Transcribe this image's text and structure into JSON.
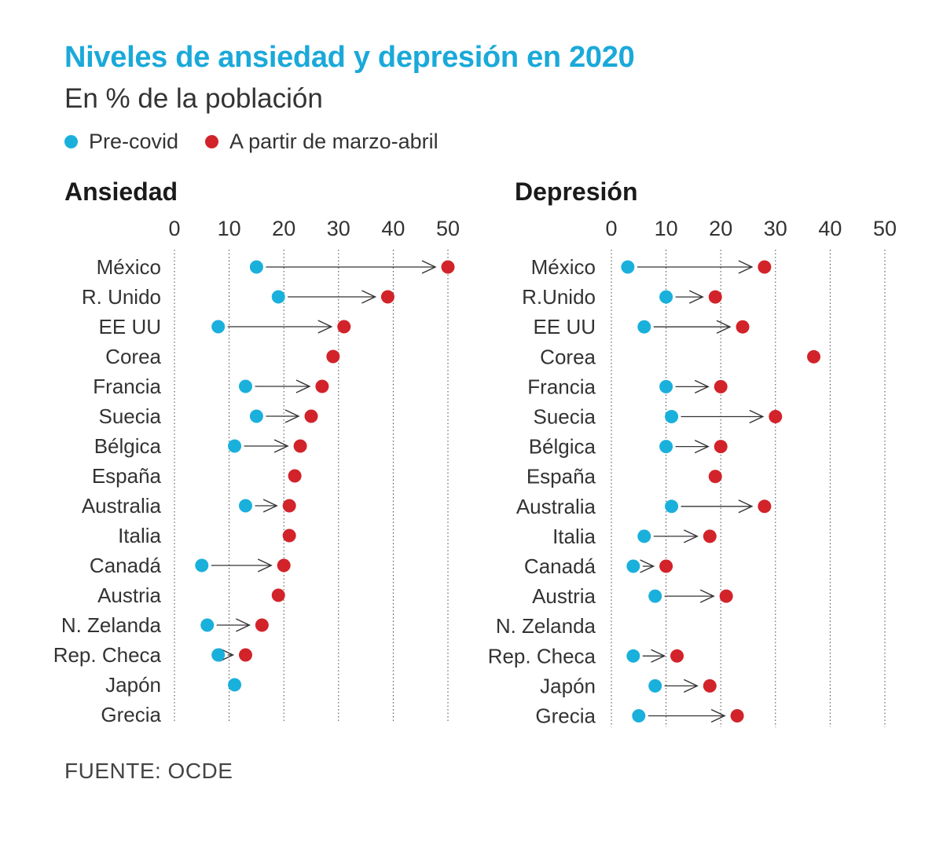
{
  "title": "Niveles de ansiedad y depresión en 2020",
  "subtitle": "En % de la población",
  "legend": [
    {
      "label": "Pre-covid",
      "color": "#1ab0dc"
    },
    {
      "label": "A partir de marzo-abril",
      "color": "#d2232a"
    }
  ],
  "source": "FUENTE: OCDE",
  "colors": {
    "pre": "#1ab0dc",
    "post": "#d2232a"
  },
  "chart_data": [
    {
      "type": "dot-arrow",
      "title": "Ansiedad",
      "xlim": [
        0,
        50
      ],
      "ticks": [
        0,
        10,
        20,
        30,
        40,
        50
      ],
      "series": [
        {
          "name": "Pre-covid"
        },
        {
          "name": "A partir de marzo-abril"
        }
      ],
      "rows": [
        {
          "label": "México",
          "pre": 15,
          "post": 50
        },
        {
          "label": "R. Unido",
          "pre": 19,
          "post": 39
        },
        {
          "label": "EE UU",
          "pre": 8,
          "post": 31
        },
        {
          "label": "Corea",
          "pre": null,
          "post": 29
        },
        {
          "label": "Francia",
          "pre": 13,
          "post": 27
        },
        {
          "label": "Suecia",
          "pre": 15,
          "post": 25
        },
        {
          "label": "Bélgica",
          "pre": 11,
          "post": 23
        },
        {
          "label": "España",
          "pre": null,
          "post": 22
        },
        {
          "label": "Australia",
          "pre": 13,
          "post": 21
        },
        {
          "label": "Italia",
          "pre": null,
          "post": 21
        },
        {
          "label": "Canadá",
          "pre": 5,
          "post": 20
        },
        {
          "label": "Austria",
          "pre": null,
          "post": 19
        },
        {
          "label": "N. Zelanda",
          "pre": 6,
          "post": 16
        },
        {
          "label": "Rep. Checa",
          "pre": 8,
          "post": 13
        },
        {
          "label": "Japón",
          "pre": 11,
          "post": null
        },
        {
          "label": "Grecia",
          "pre": null,
          "post": null
        }
      ]
    },
    {
      "type": "dot-arrow",
      "title": "Depresión",
      "xlim": [
        0,
        50
      ],
      "ticks": [
        0,
        10,
        20,
        30,
        40,
        50
      ],
      "series": [
        {
          "name": "Pre-covid"
        },
        {
          "name": "A partir de marzo-abril"
        }
      ],
      "rows": [
        {
          "label": "México",
          "pre": 3,
          "post": 28
        },
        {
          "label": "R.Unido",
          "pre": 10,
          "post": 19
        },
        {
          "label": "EE UU",
          "pre": 6,
          "post": 24
        },
        {
          "label": "Corea",
          "pre": null,
          "post": 37
        },
        {
          "label": "Francia",
          "pre": 10,
          "post": 20
        },
        {
          "label": "Suecia",
          "pre": 11,
          "post": 30
        },
        {
          "label": "Bélgica",
          "pre": 10,
          "post": 20
        },
        {
          "label": "España",
          "pre": null,
          "post": 19
        },
        {
          "label": "Australia",
          "pre": 11,
          "post": 28
        },
        {
          "label": "Italia",
          "pre": 6,
          "post": 18
        },
        {
          "label": "Canadá",
          "pre": 4,
          "post": 10
        },
        {
          "label": "Austria",
          "pre": 8,
          "post": 21
        },
        {
          "label": "N. Zelanda",
          "pre": null,
          "post": null
        },
        {
          "label": "Rep. Checa",
          "pre": 4,
          "post": 12
        },
        {
          "label": "Japón",
          "pre": 8,
          "post": 18
        },
        {
          "label": "Grecia",
          "pre": 5,
          "post": 23
        }
      ]
    }
  ]
}
